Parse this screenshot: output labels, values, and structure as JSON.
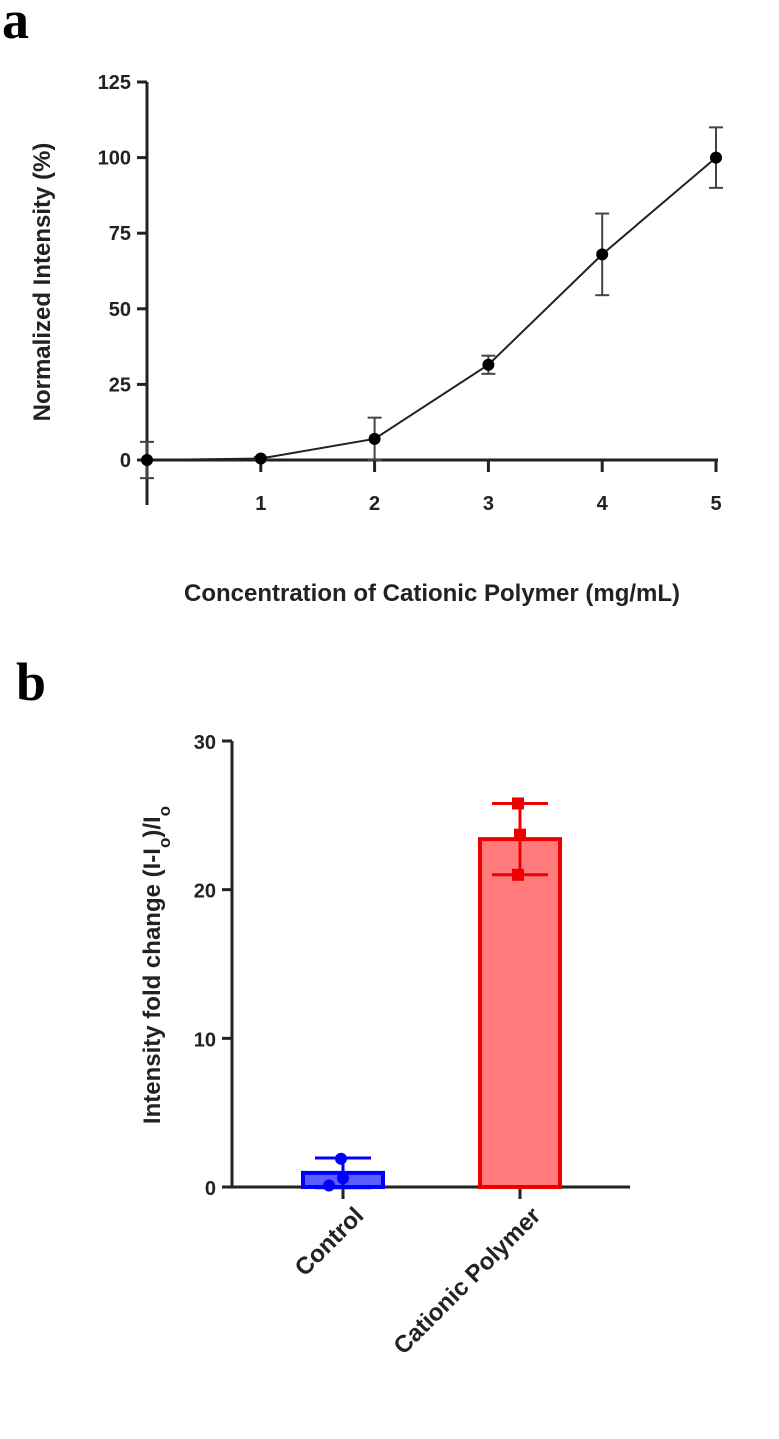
{
  "chart_data": [
    {
      "panel": "a",
      "type": "line",
      "xlabel": "Concentration of Cationic Polymer (mg/mL)",
      "ylabel": "Normalized Intensity (%)",
      "xlim": [
        0,
        5
      ],
      "ylim": [
        0,
        125
      ],
      "xticks": [
        "1",
        "2",
        "3",
        "4",
        "5"
      ],
      "yticks": [
        "0",
        "25",
        "50",
        "75",
        "100",
        "125"
      ],
      "x": [
        0,
        1,
        2,
        3,
        4,
        5
      ],
      "y": [
        0,
        0.5,
        7,
        31.5,
        68,
        100
      ],
      "error": [
        6,
        0.5,
        7,
        3,
        13.5,
        10
      ],
      "grid": false,
      "colors": {
        "line": "#222222",
        "marker": "#000000"
      }
    },
    {
      "panel": "b",
      "type": "bar",
      "ylabel": "Intensity fold change (I-I",
      "ylabel_sub1": "o",
      "ylabel_mid": ")/I",
      "ylabel_sub2": "o",
      "categories": [
        "Control",
        "Cationic Polymer"
      ],
      "values": [
        0.95,
        23.4
      ],
      "error": [
        1.0,
        2.4
      ],
      "points": [
        [
          1.9,
          0.6,
          0.1
        ],
        [
          25.8,
          23.7,
          21.0
        ]
      ],
      "ylim": [
        0,
        30
      ],
      "yticks": [
        "0",
        "10",
        "20",
        "30"
      ],
      "grid": false,
      "colors": {
        "control_fill": "#5c5cff",
        "control_edge": "#0000ff",
        "polymer_fill": "#ff7b7b",
        "polymer_edge": "#ee0000"
      }
    }
  ],
  "panels": {
    "a": "a",
    "b": "b"
  }
}
